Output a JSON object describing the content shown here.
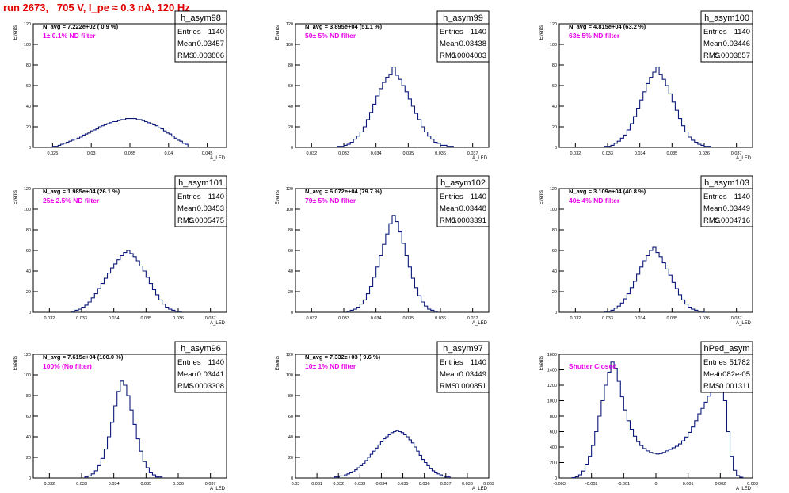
{
  "page": {
    "title": "run 2673,   705 V, I_pe ≈ 0.3 nA, 120 Hz"
  },
  "colors": {
    "hist": "#0b1a7a",
    "title": "#e00000",
    "label": "#e800e8",
    "frame": "#000000"
  },
  "stats_labels": {
    "entries": "Entries",
    "mean": "Mean",
    "rms": "RMS"
  },
  "chart_data": [
    {
      "type": "histogram",
      "name": "h_asym98",
      "ylabel": "Events",
      "xlabel": "A_LED",
      "navg_text": "N_avg = 7.222e+02 ( 0.9 %)",
      "filter_text": "1± 0.1% ND filter",
      "stats": {
        "entries": "1140",
        "mean": "0.03457",
        "rms": "0.003806"
      },
      "xlim": [
        0.0225,
        0.0475
      ],
      "ylim": [
        0,
        120
      ],
      "xticks": [
        0.025,
        0.03,
        0.035,
        0.04,
        0.045
      ],
      "xticklabels": [
        "0.025",
        "0.03",
        "0.035",
        "0.04",
        "0.045"
      ],
      "yticks": [
        0,
        20,
        40,
        60,
        80,
        100,
        120
      ],
      "bins": {
        "x0": 0.025,
        "width": 0.00035,
        "counts": [
          1,
          1,
          2,
          3,
          4,
          5,
          6,
          7,
          8,
          9,
          10,
          12,
          13,
          14,
          16,
          17,
          18,
          20,
          21,
          22,
          23,
          24,
          25,
          25,
          26,
          27,
          27,
          28,
          28,
          28,
          28,
          27,
          27,
          26,
          25,
          24,
          23,
          22,
          21,
          19,
          18,
          16,
          14,
          13,
          11,
          9,
          7,
          6,
          4,
          3
        ]
      }
    },
    {
      "type": "histogram",
      "name": "h_asym99",
      "ylabel": "Events",
      "xlabel": "A_LED",
      "navg_text": "N_avg = 3.895e+04 (51.1 %)",
      "filter_text": "50± 5% ND filter",
      "stats": {
        "entries": "1140",
        "mean": "0.03438",
        "rms": "0.0004003"
      },
      "xlim": [
        0.0315,
        0.0375
      ],
      "ylim": [
        0,
        120
      ],
      "xticks": [
        0.032,
        0.033,
        0.034,
        0.035,
        0.036,
        0.037
      ],
      "xticklabels": [
        "0.032",
        "0.033",
        "0.034",
        "0.035",
        "0.036",
        "0.037"
      ],
      "yticks": [
        0,
        20,
        40,
        60,
        80,
        100,
        120
      ],
      "bins": {
        "x0": 0.0328,
        "width": 0.0001,
        "counts": [
          1,
          1,
          2,
          3,
          5,
          8,
          11,
          15,
          20,
          27,
          34,
          42,
          50,
          57,
          63,
          68,
          71,
          78,
          70,
          66,
          60,
          54,
          47,
          40,
          33,
          27,
          20,
          15,
          11,
          8,
          5,
          4,
          2,
          2,
          1,
          1
        ]
      }
    },
    {
      "type": "histogram",
      "name": "h_asym100",
      "ylabel": "Events",
      "xlabel": "A_LED",
      "navg_text": "N_avg = 4.815e+04 (63.2 %)",
      "filter_text": "63± 5% ND filter",
      "stats": {
        "entries": "1140",
        "mean": "0.03446",
        "rms": "0.0003857"
      },
      "xlim": [
        0.0315,
        0.0375
      ],
      "ylim": [
        0,
        120
      ],
      "xticks": [
        0.032,
        0.033,
        0.034,
        0.035,
        0.036,
        0.037
      ],
      "xticklabels": [
        "0.032",
        "0.033",
        "0.034",
        "0.035",
        "0.036",
        "0.037"
      ],
      "yticks": [
        0,
        20,
        40,
        60,
        80,
        100,
        120
      ],
      "bins": {
        "x0": 0.0329,
        "width": 0.0001,
        "counts": [
          1,
          1,
          2,
          4,
          6,
          9,
          12,
          17,
          23,
          30,
          38,
          46,
          54,
          62,
          68,
          73,
          78,
          71,
          66,
          60,
          52,
          44,
          36,
          28,
          21,
          15,
          10,
          7,
          5,
          3,
          2,
          1,
          1
        ]
      }
    },
    {
      "type": "histogram",
      "name": "h_asym101",
      "ylabel": "Events",
      "xlabel": "A_LED",
      "navg_text": "N_avg = 1.985e+04 (26.1 %)",
      "filter_text": "25± 2.5% ND filter",
      "stats": {
        "entries": "1140",
        "mean": "0.03453",
        "rms": "0.0005475"
      },
      "xlim": [
        0.0315,
        0.0375
      ],
      "ylim": [
        0,
        120
      ],
      "xticks": [
        0.032,
        0.033,
        0.034,
        0.035,
        0.036,
        0.037
      ],
      "xticklabels": [
        "0.032",
        "0.033",
        "0.034",
        "0.035",
        "0.036",
        "0.037"
      ],
      "yticks": [
        0,
        20,
        40,
        60,
        80,
        100,
        120
      ],
      "bins": {
        "x0": 0.0327,
        "width": 0.0001,
        "counts": [
          1,
          2,
          3,
          5,
          7,
          10,
          14,
          18,
          23,
          28,
          33,
          38,
          43,
          47,
          51,
          55,
          58,
          60,
          57,
          54,
          50,
          45,
          40,
          34,
          28,
          22,
          17,
          12,
          8,
          5,
          3,
          2,
          1,
          1
        ]
      }
    },
    {
      "type": "histogram",
      "name": "h_asym102",
      "ylabel": "Events",
      "xlabel": "A_LED",
      "navg_text": "N_avg = 6.072e+04 (79.7 %)",
      "filter_text": "79± 5% ND filter",
      "stats": {
        "entries": "1140",
        "mean": "0.03448",
        "rms": "0.0003391"
      },
      "xlim": [
        0.0315,
        0.0375
      ],
      "ylim": [
        0,
        120
      ],
      "xticks": [
        0.032,
        0.033,
        0.034,
        0.035,
        0.036,
        0.037
      ],
      "xticklabels": [
        "0.032",
        "0.033",
        "0.034",
        "0.035",
        "0.036",
        "0.037"
      ],
      "yticks": [
        0,
        20,
        40,
        60,
        80,
        100,
        120
      ],
      "bins": {
        "x0": 0.0331,
        "width": 0.0001,
        "counts": [
          1,
          2,
          3,
          5,
          8,
          12,
          18,
          25,
          34,
          44,
          55,
          66,
          76,
          86,
          94,
          88,
          78,
          67,
          55,
          44,
          33,
          24,
          16,
          10,
          6,
          3,
          2,
          1
        ]
      }
    },
    {
      "type": "histogram",
      "name": "h_asym103",
      "ylabel": "Events",
      "xlabel": "A_LED",
      "navg_text": "N_avg = 3.109e+04 (40.8 %)",
      "filter_text": "40± 4% ND filter",
      "stats": {
        "entries": "1140",
        "mean": "0.03449",
        "rms": "0.0004716"
      },
      "xlim": [
        0.0315,
        0.0375
      ],
      "ylim": [
        0,
        120
      ],
      "xticks": [
        0.032,
        0.033,
        0.034,
        0.035,
        0.036,
        0.037
      ],
      "xticklabels": [
        "0.032",
        "0.033",
        "0.034",
        "0.035",
        "0.036",
        "0.037"
      ],
      "yticks": [
        0,
        20,
        40,
        60,
        80,
        100,
        120
      ],
      "bins": {
        "x0": 0.0329,
        "width": 0.0001,
        "counts": [
          1,
          1,
          2,
          4,
          6,
          9,
          13,
          18,
          24,
          30,
          37,
          44,
          50,
          55,
          60,
          63,
          58,
          54,
          48,
          42,
          36,
          29,
          23,
          17,
          12,
          8,
          5,
          3,
          2,
          1,
          1
        ]
      }
    },
    {
      "type": "histogram",
      "name": "h_asym96",
      "ylabel": "Events",
      "xlabel": "A_LED",
      "navg_text": "N_avg = 7.615e+04 (100.0 %)",
      "filter_text": "100% (No filter)",
      "stats": {
        "entries": "1140",
        "mean": "0.03441",
        "rms": "0.0003308"
      },
      "xlim": [
        0.0315,
        0.0375
      ],
      "ylim": [
        0,
        120
      ],
      "xticks": [
        0.032,
        0.033,
        0.034,
        0.035,
        0.036,
        0.037
      ],
      "xticklabels": [
        "0.032",
        "0.033",
        "0.034",
        "0.035",
        "0.036",
        "0.037"
      ],
      "yticks": [
        0,
        20,
        40,
        60,
        80,
        100,
        120
      ],
      "bins": {
        "x0": 0.0331,
        "width": 0.0001,
        "counts": [
          1,
          2,
          4,
          7,
          12,
          19,
          28,
          40,
          54,
          70,
          84,
          94,
          90,
          80,
          66,
          52,
          38,
          26,
          16,
          10,
          5,
          3,
          1,
          1
        ]
      }
    },
    {
      "type": "histogram",
      "name": "h_asym97",
      "ylabel": "Events",
      "xlabel": "A_LED",
      "navg_text": "N_avg = 7.332e+03 ( 9.6 %)",
      "filter_text": "10± 1% ND filter",
      "stats": {
        "entries": "1140",
        "mean": "0.03449",
        "rms": "0.000851"
      },
      "xlim": [
        0.03,
        0.039
      ],
      "ylim": [
        0,
        120
      ],
      "xticks": [
        0.03,
        0.031,
        0.032,
        0.033,
        0.034,
        0.035,
        0.036,
        0.037,
        0.038,
        0.039
      ],
      "xticklabels": [
        "0.03",
        "0.031",
        "0.032",
        "0.033",
        "0.034",
        "0.035",
        "0.036",
        "0.037",
        "0.038",
        "0.039"
      ],
      "yticks": [
        0,
        20,
        40,
        60,
        80,
        100,
        120
      ],
      "bins": {
        "x0": 0.0318,
        "width": 0.00012,
        "counts": [
          1,
          1,
          2,
          2,
          3,
          4,
          5,
          6,
          8,
          10,
          12,
          14,
          17,
          20,
          23,
          26,
          29,
          32,
          35,
          38,
          40,
          42,
          44,
          45,
          46,
          45,
          44,
          42,
          40,
          37,
          34,
          30,
          26,
          22,
          18,
          15,
          12,
          9,
          7,
          5,
          4,
          3,
          2,
          1,
          1
        ]
      }
    },
    {
      "type": "histogram",
      "name": "hPed_asym",
      "ylabel": "Events",
      "xlabel": "A_LED",
      "navg_text": "",
      "filter_text": "Shutter Closed",
      "stats": {
        "entries": "51782",
        "mean": "1.082e-05",
        "rms": "0.001311"
      },
      "xlim": [
        -0.003,
        0.003
      ],
      "ylim": [
        0,
        1600
      ],
      "xticks": [
        -0.003,
        -0.002,
        -0.001,
        0,
        0.001,
        0.002,
        0.003
      ],
      "xticklabels": [
        "-0.003",
        "-0.002",
        "-0.001",
        "0",
        "0.001",
        "0.002",
        "0.003"
      ],
      "yticks": [
        0,
        200,
        400,
        600,
        800,
        1000,
        1200,
        1400,
        1600
      ],
      "bins": {
        "x0": -0.0026,
        "width": 0.0001,
        "counts": [
          5,
          15,
          40,
          90,
          170,
          280,
          420,
          600,
          800,
          1000,
          1200,
          1370,
          1500,
          1420,
          1250,
          1050,
          880,
          740,
          630,
          540,
          470,
          420,
          380,
          350,
          330,
          320,
          310,
          315,
          330,
          350,
          370,
          390,
          410,
          440,
          480,
          530,
          590,
          660,
          740,
          830,
          900,
          980,
          1060,
          1120,
          1180,
          1250,
          1300,
          1000,
          600,
          280,
          100,
          30,
          10
        ]
      }
    }
  ]
}
